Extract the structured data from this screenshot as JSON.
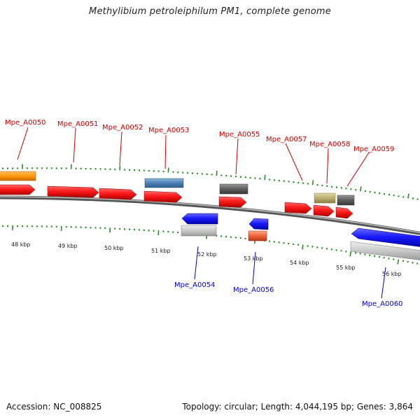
{
  "title": "Methylibium petroleiphilum PM1, complete genome",
  "footer": {
    "accession": "Accession: NC_008825",
    "topology": "Topology: circular; Length: 4,044,195 bp; Genes: 3,864"
  },
  "colors": {
    "forward_label": "#cc0000",
    "reverse_label": "#0000cc",
    "tick": "#2a8a2a",
    "backbone": "#888888"
  },
  "kbp_labels": [
    "48 kbp",
    "49 kbp",
    "50 kbp",
    "51 kbp",
    "52 kbp",
    "53 kbp",
    "54 kbp",
    "55 kbp",
    "56 kbp"
  ],
  "forward_gene_labels": [
    "Mpe_A0050",
    "Mpe_A0051",
    "Mpe_A0052",
    "Mpe_A0053",
    "Mpe_A0055",
    "Mpe_A0057",
    "Mpe_A0058",
    "Mpe_A0059"
  ],
  "reverse_gene_labels": [
    "Mpe_A0054",
    "Mpe_A0056",
    "Mpe_A0060"
  ]
}
